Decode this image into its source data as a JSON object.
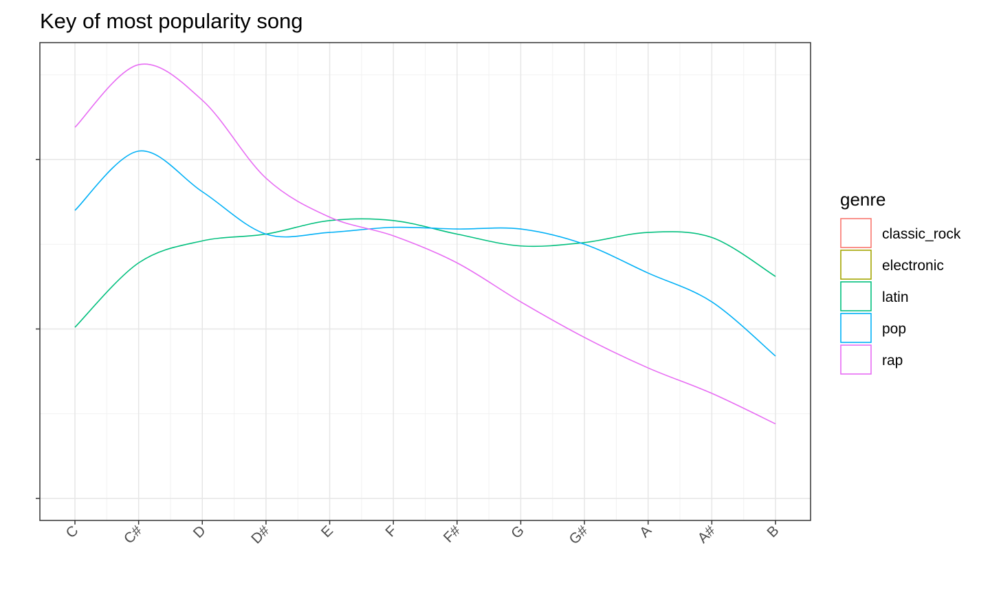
{
  "chart_data": {
    "type": "line",
    "title": "Key of most popularity song",
    "categories": [
      "C",
      "C#",
      "D",
      "D#",
      "E",
      "F",
      "F#",
      "G",
      "G#",
      "A",
      "A#",
      "B"
    ],
    "series": [
      {
        "name": "classic_rock",
        "color": "#F8766D",
        "values": [
          null,
          null,
          null,
          null,
          null,
          null,
          null,
          null,
          null,
          null,
          null,
          null
        ]
      },
      {
        "name": "electronic",
        "color": "#A3A500",
        "values": [
          null,
          null,
          null,
          null,
          null,
          null,
          null,
          null,
          null,
          null,
          null,
          null
        ]
      },
      {
        "name": "latin",
        "color": "#00BF7D",
        "values": [
          1.01,
          1.39,
          1.52,
          1.56,
          1.64,
          1.64,
          1.56,
          1.49,
          1.51,
          1.57,
          1.54,
          1.31
        ]
      },
      {
        "name": "pop",
        "color": "#00B0F6",
        "values": [
          1.7,
          2.05,
          1.81,
          1.56,
          1.57,
          1.6,
          1.59,
          1.59,
          1.5,
          1.33,
          1.16,
          0.84
        ]
      },
      {
        "name": "rap",
        "color": "#E76BF3",
        "values": [
          2.19,
          2.56,
          2.35,
          1.89,
          1.66,
          1.55,
          1.39,
          1.16,
          0.95,
          0.77,
          0.62,
          0.44
        ]
      }
    ],
    "legend_title": "genre",
    "ylim": [
      -0.13,
      2.69
    ],
    "yticks": [
      0,
      1,
      2
    ],
    "grid": true
  }
}
